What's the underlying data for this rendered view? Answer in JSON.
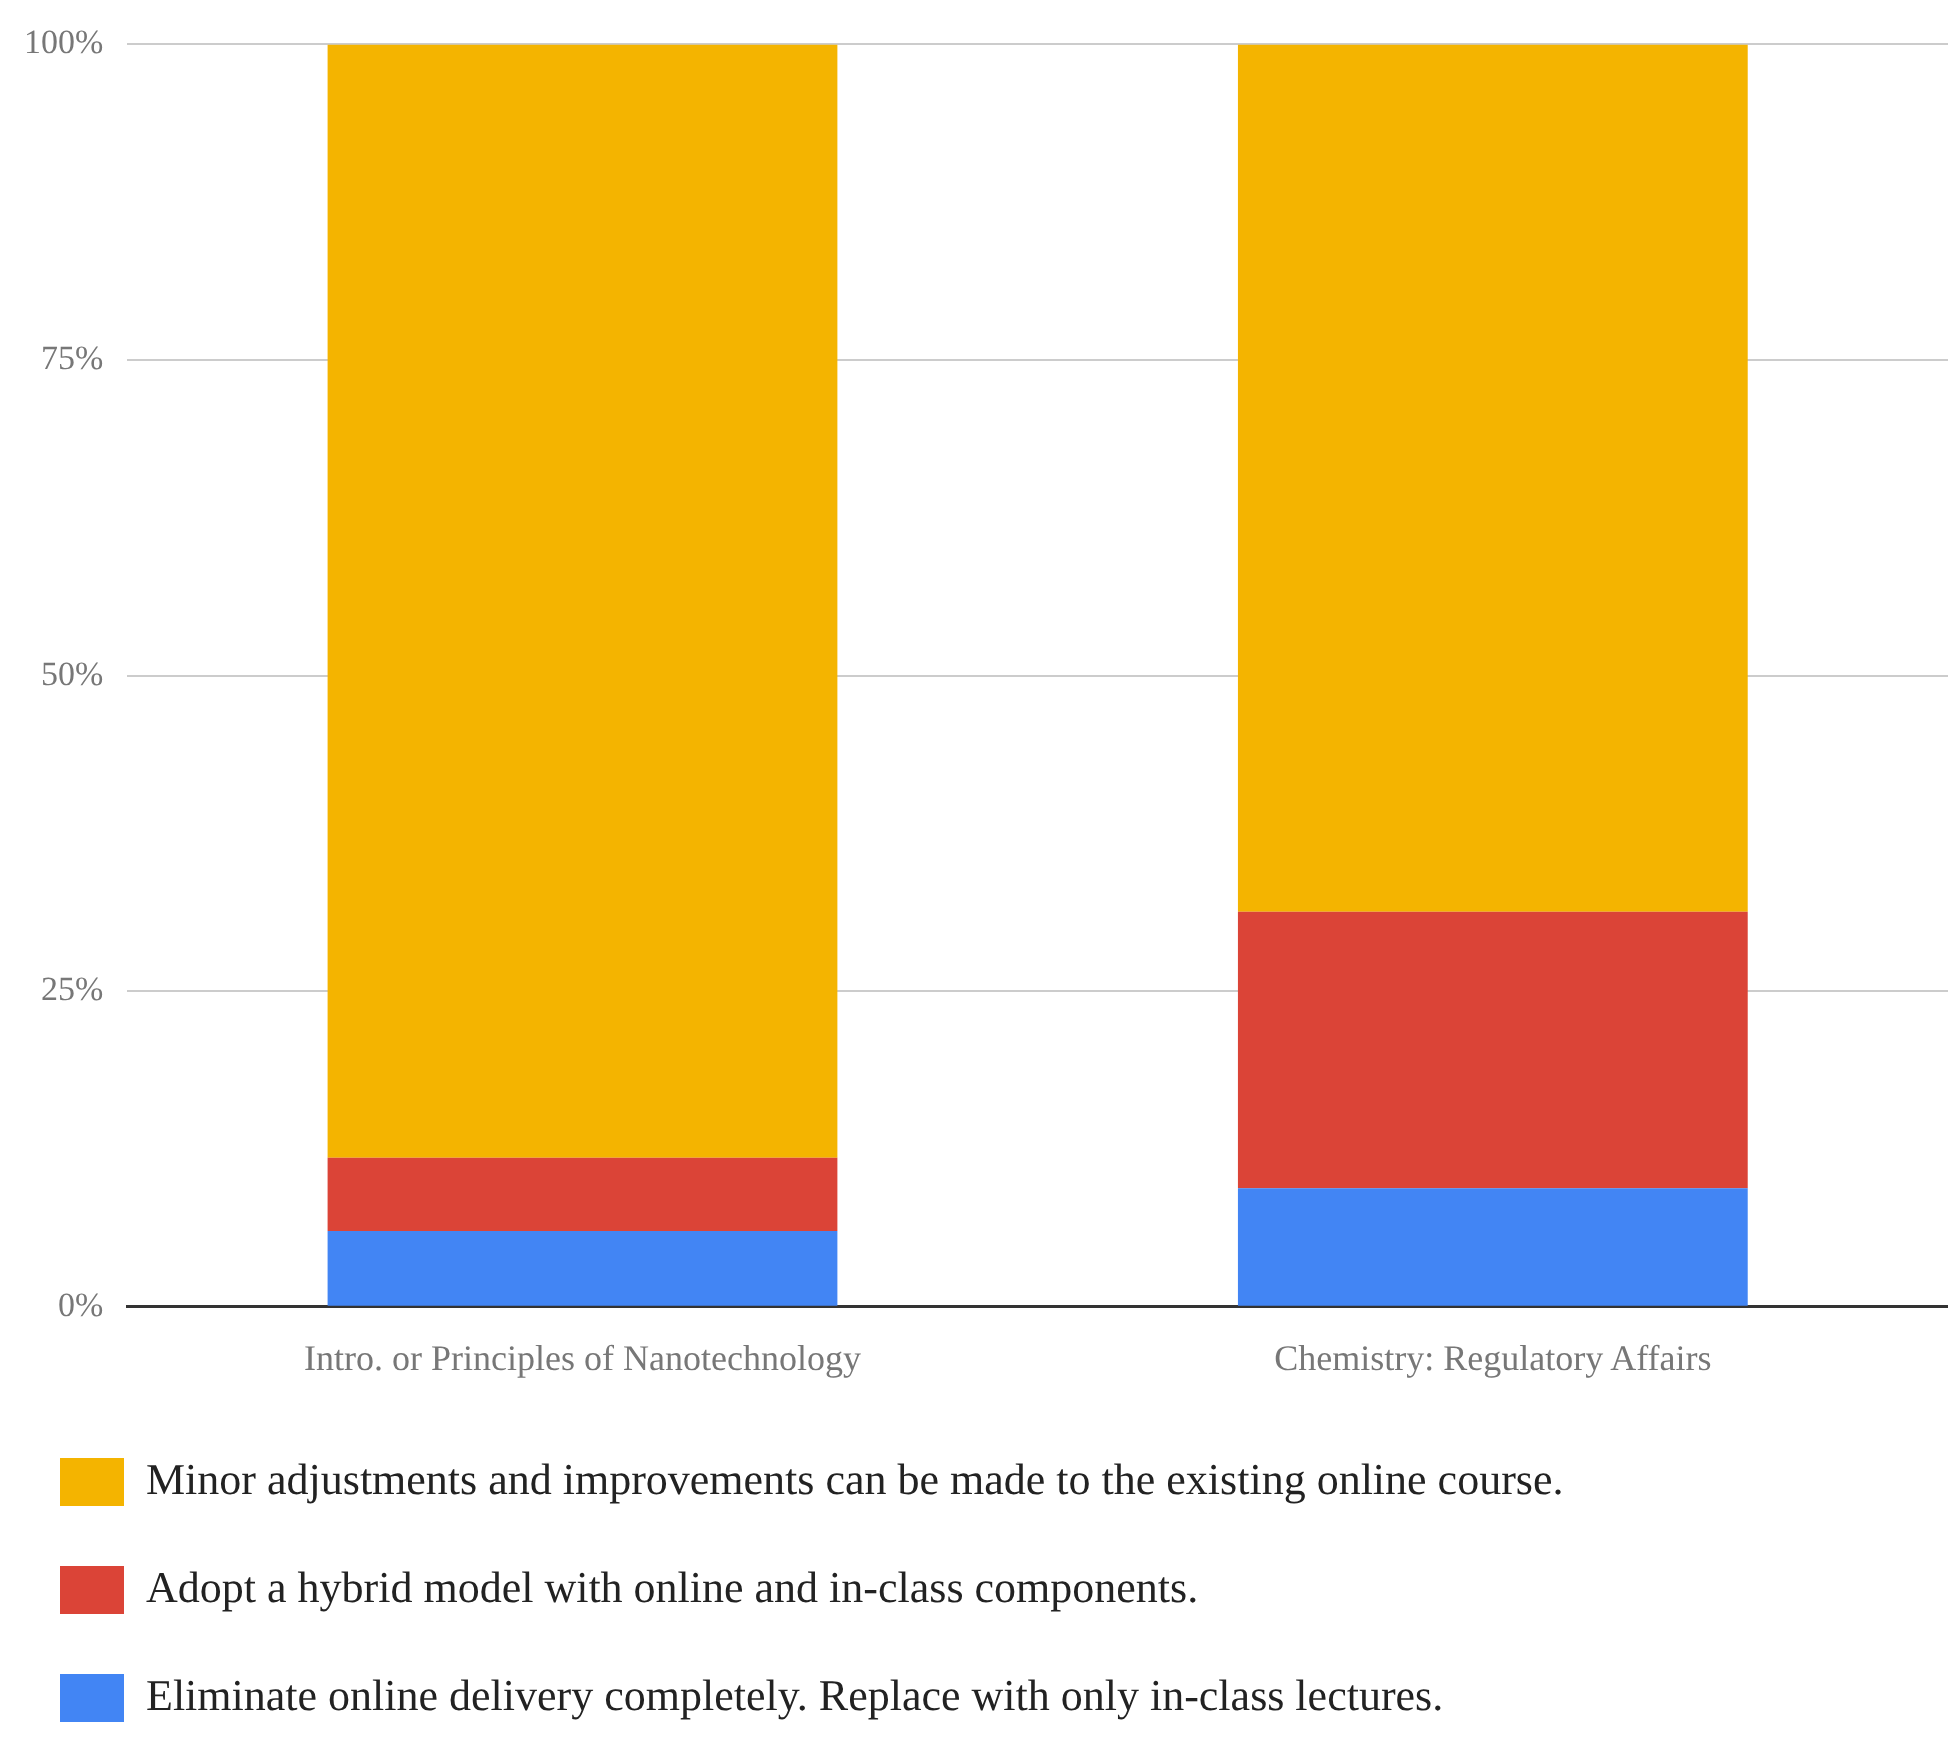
{
  "chart_data": {
    "type": "bar",
    "stacked": true,
    "categories": [
      "Intro. or Principles of Nanotechnology",
      "Chemistry: Regulatory Affairs"
    ],
    "series": [
      {
        "name": "Eliminate online delivery completely. Replace with only in-class lectures.",
        "color": "#4285f4",
        "values": [
          6,
          9.4
        ]
      },
      {
        "name": "Adopt a hybrid model with online and in-class components.",
        "color": "#db4437",
        "values": [
          5.8,
          21.9
        ]
      },
      {
        "name": "Minor adjustments and improvements can be made to the existing online course.",
        "color": "#f4b400",
        "values": [
          88.2,
          68.7
        ]
      }
    ],
    "ylim": [
      0,
      100
    ],
    "yticks": [
      {
        "value": 0,
        "label": "0%"
      },
      {
        "value": 25,
        "label": "25%"
      },
      {
        "value": 50,
        "label": "50%"
      },
      {
        "value": 75,
        "label": "75%"
      },
      {
        "value": 100,
        "label": "100%"
      }
    ],
    "grid": "y",
    "legend": "bottom"
  }
}
